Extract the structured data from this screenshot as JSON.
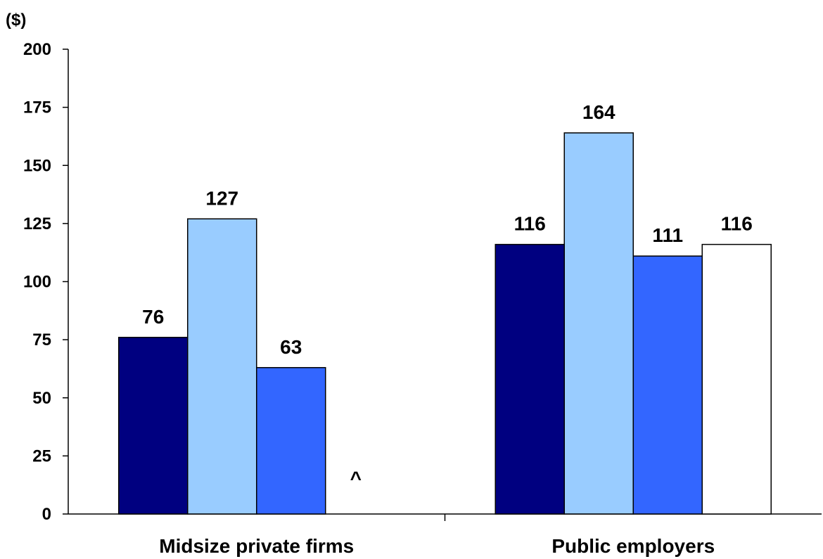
{
  "chart_data": {
    "type": "bar",
    "ylabel": "($)",
    "ylim": [
      0,
      200
    ],
    "yticks": [
      0,
      25,
      50,
      75,
      100,
      125,
      150,
      175,
      200
    ],
    "grid": false,
    "legend": "none",
    "categories": [
      "Midsize private firms",
      "Public employers"
    ],
    "series": [
      {
        "color": "#000080",
        "values": [
          76,
          116
        ],
        "labels": [
          "76",
          "116"
        ]
      },
      {
        "color": "#99CCFF",
        "values": [
          127,
          164
        ],
        "labels": [
          "127",
          "164"
        ]
      },
      {
        "color": "#3366FF",
        "values": [
          63,
          111
        ],
        "labels": [
          "63",
          "111"
        ]
      },
      {
        "color": "#FFFFFF",
        "values": [
          null,
          116
        ],
        "labels": [
          "^",
          "116"
        ]
      }
    ]
  }
}
